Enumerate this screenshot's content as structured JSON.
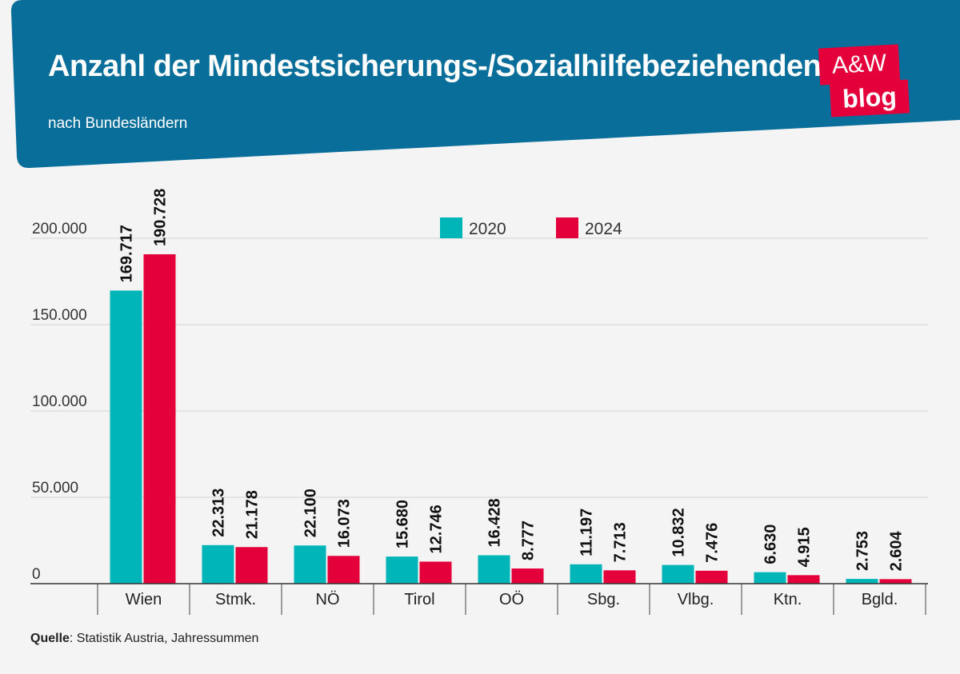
{
  "header": {
    "title": "Anzahl der Mindestsicherungs-/Sozialhilfebeziehenden",
    "subtitle": "nach Bundesländern",
    "logo_top": "A&W",
    "logo_bottom": "blog",
    "bg_color": "#0a6e9a"
  },
  "source": {
    "label": "Quelle",
    "text": ": Statistik Austria, Jahressummen"
  },
  "chart_data": {
    "type": "bar",
    "categories": [
      "Wien",
      "Stmk.",
      "NÖ",
      "Tirol",
      "OÖ",
      "Sbg.",
      "Vlbg.",
      "Ktn.",
      "Bgld."
    ],
    "series": [
      {
        "name": "2020",
        "color": "#00b5b8",
        "values": [
          169717,
          22313,
          22100,
          15680,
          16428,
          11197,
          10832,
          6630,
          2753
        ],
        "labels": [
          "169.717",
          "22.313",
          "22.100",
          "15.680",
          "16.428",
          "11.197",
          "10.832",
          "6.630",
          "2.753"
        ]
      },
      {
        "name": "2024",
        "color": "#e4003a",
        "values": [
          190728,
          21178,
          16073,
          12746,
          8777,
          7713,
          7476,
          4915,
          2604
        ],
        "labels": [
          "190.728",
          "21.178",
          "16.073",
          "12.746",
          "8.777",
          "7.713",
          "7.476",
          "4.915",
          "2.604"
        ]
      }
    ],
    "yticks": [
      0,
      50000,
      100000,
      150000,
      200000
    ],
    "ytick_labels": [
      "0",
      "50.000",
      "100.000",
      "150.000",
      "200.000"
    ],
    "ylim": [
      0,
      200000
    ],
    "grid": true,
    "legend_position": "top-center"
  }
}
